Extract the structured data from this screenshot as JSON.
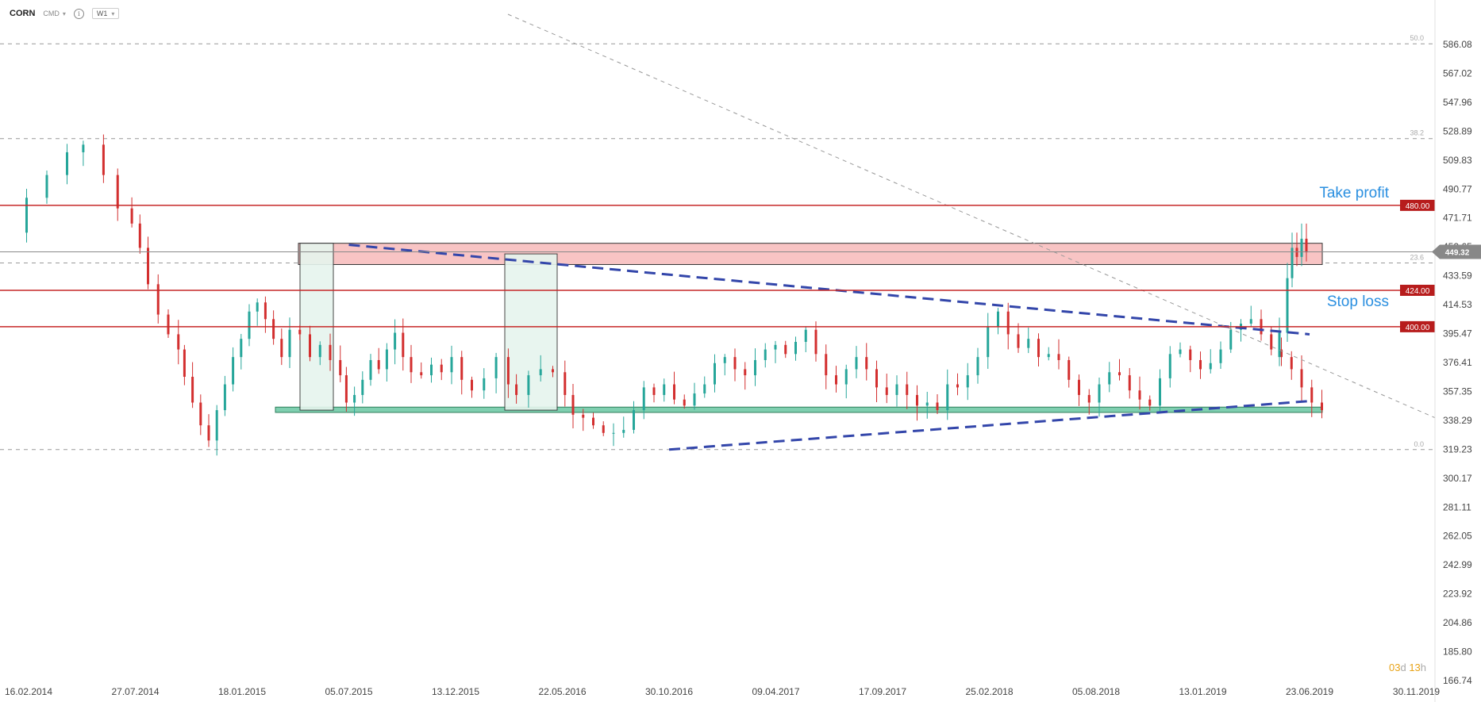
{
  "toolbar": {
    "symbol": "CORN",
    "exchange": "CMD",
    "timeframe": "W1"
  },
  "countdown": {
    "days": "03",
    "d": "d",
    "hours": "13",
    "h": "h"
  },
  "colors": {
    "up": "#26a69a",
    "down": "#d32f2f",
    "level_line": "#c62828",
    "resistance_zone": "#f8c4c4",
    "support_zone": "#7fcfb0",
    "trend_line": "#3346aa",
    "annotation": "#2a8fe0"
  },
  "chart_data": {
    "type": "candlestick",
    "instrument": "CORN",
    "timeframe": "W1",
    "ylim": [
      166.74,
      596.0
    ],
    "y_ticks": [
      "586.08",
      "567.02",
      "547.96",
      "528.89",
      "509.83",
      "490.77",
      "471.71",
      "452.65",
      "433.59",
      "414.53",
      "395.47",
      "376.41",
      "357.35",
      "338.29",
      "319.23",
      "300.17",
      "281.11",
      "262.05",
      "242.99",
      "223.92",
      "204.86",
      "185.80",
      "166.74"
    ],
    "x_ticks": [
      "16.02.2014",
      "27.07.2014",
      "18.01.2015",
      "05.07.2015",
      "13.12.2015",
      "22.05.2016",
      "30.10.2016",
      "09.04.2017",
      "17.09.2017",
      "25.02.2018",
      "05.08.2018",
      "13.01.2019",
      "23.06.2019",
      "30.11.2019"
    ],
    "current_price": "449.32",
    "levels": [
      {
        "price": 480.0,
        "label": "480.00",
        "annotation": "Take profit"
      },
      {
        "price": 424.0,
        "label": "424.00",
        "annotation": "Stop loss"
      },
      {
        "price": 400.0,
        "label": "400.00",
        "annotation": ""
      }
    ],
    "fibonacci": [
      {
        "level": "50.0",
        "price": 586.5
      },
      {
        "level": "38.2",
        "price": 524.0
      },
      {
        "level": "23.6",
        "price": 442.0
      },
      {
        "level": "0.0",
        "price": 319.0
      }
    ],
    "zones": [
      {
        "type": "resistance",
        "price_top": 455.0,
        "price_bottom": 441.0
      },
      {
        "type": "support",
        "price_top": 347.0,
        "price_bottom": 343.5
      }
    ],
    "trend_lines": [
      {
        "from": [
          "05.07.2015",
          454.0
        ],
        "to": [
          "23.06.2019",
          395.0
        ],
        "style": "dashed"
      },
      {
        "from": [
          "30.10.2016",
          319.0
        ],
        "to": [
          "23.06.2019",
          351.0
        ],
        "style": "dashed"
      }
    ],
    "price_path": [
      [
        0,
        462
      ],
      [
        10,
        485
      ],
      [
        20,
        500
      ],
      [
        30,
        515
      ],
      [
        38,
        520
      ],
      [
        48,
        500
      ],
      [
        55,
        478
      ],
      [
        62,
        468
      ],
      [
        66,
        452
      ],
      [
        70,
        428
      ],
      [
        75,
        408
      ],
      [
        80,
        395
      ],
      [
        85,
        385
      ],
      [
        88,
        367
      ],
      [
        92,
        350
      ],
      [
        96,
        335
      ],
      [
        100,
        325
      ],
      [
        104,
        345
      ],
      [
        108,
        362
      ],
      [
        112,
        380
      ],
      [
        116,
        392
      ],
      [
        120,
        410
      ],
      [
        124,
        416
      ],
      [
        128,
        405
      ],
      [
        132,
        392
      ],
      [
        136,
        380
      ],
      [
        140,
        398
      ],
      [
        145,
        395
      ],
      [
        150,
        380
      ],
      [
        155,
        388
      ],
      [
        160,
        378
      ],
      [
        165,
        368
      ],
      [
        168,
        350
      ],
      [
        172,
        355
      ],
      [
        176,
        365
      ],
      [
        180,
        378
      ],
      [
        184,
        372
      ],
      [
        188,
        385
      ],
      [
        192,
        396
      ],
      [
        196,
        380
      ],
      [
        200,
        370
      ],
      [
        205,
        368
      ],
      [
        210,
        375
      ],
      [
        215,
        370
      ],
      [
        220,
        380
      ],
      [
        225,
        365
      ],
      [
        230,
        358
      ],
      [
        236,
        366
      ],
      [
        242,
        380
      ],
      [
        248,
        362
      ],
      [
        252,
        355
      ],
      [
        258,
        368
      ],
      [
        264,
        372
      ],
      [
        270,
        370
      ],
      [
        276,
        355
      ],
      [
        280,
        342
      ],
      [
        285,
        340
      ],
      [
        290,
        335
      ],
      [
        295,
        330
      ],
      [
        300,
        330
      ],
      [
        305,
        332
      ],
      [
        310,
        345
      ],
      [
        315,
        360
      ],
      [
        320,
        355
      ],
      [
        325,
        362
      ],
      [
        330,
        352
      ],
      [
        335,
        348
      ],
      [
        340,
        356
      ],
      [
        345,
        362
      ],
      [
        350,
        376
      ],
      [
        355,
        380
      ],
      [
        360,
        372
      ],
      [
        365,
        368
      ],
      [
        370,
        378
      ],
      [
        375,
        385
      ],
      [
        380,
        388
      ],
      [
        385,
        382
      ],
      [
        390,
        390
      ],
      [
        395,
        398
      ],
      [
        400,
        382
      ],
      [
        405,
        368
      ],
      [
        410,
        362
      ],
      [
        415,
        372
      ],
      [
        420,
        380
      ],
      [
        425,
        372
      ],
      [
        430,
        360
      ],
      [
        435,
        355
      ],
      [
        440,
        362
      ],
      [
        445,
        355
      ],
      [
        450,
        348
      ],
      [
        455,
        350
      ],
      [
        460,
        345
      ],
      [
        465,
        362
      ],
      [
        470,
        360
      ],
      [
        475,
        368
      ],
      [
        480,
        380
      ],
      [
        485,
        400
      ],
      [
        490,
        410
      ],
      [
        495,
        395
      ],
      [
        500,
        386
      ],
      [
        505,
        392
      ],
      [
        510,
        380
      ],
      [
        515,
        382
      ],
      [
        520,
        378
      ],
      [
        525,
        365
      ],
      [
        530,
        355
      ],
      [
        535,
        350
      ],
      [
        540,
        362
      ],
      [
        545,
        370
      ],
      [
        550,
        368
      ],
      [
        555,
        358
      ],
      [
        560,
        352
      ],
      [
        565,
        348
      ],
      [
        570,
        366
      ],
      [
        575,
        382
      ],
      [
        580,
        385
      ],
      [
        585,
        378
      ],
      [
        590,
        372
      ],
      [
        595,
        376
      ],
      [
        600,
        385
      ],
      [
        605,
        398
      ],
      [
        610,
        402
      ],
      [
        615,
        405
      ],
      [
        620,
        395
      ],
      [
        625,
        385
      ],
      [
        630,
        380
      ],
      [
        635,
        372
      ],
      [
        640,
        360
      ],
      [
        645,
        350
      ],
      [
        650,
        345
      ]
    ]
  }
}
